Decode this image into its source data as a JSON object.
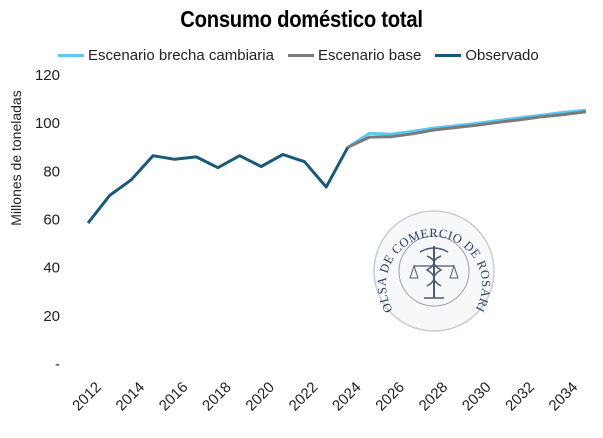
{
  "chart_data": {
    "type": "line",
    "title": "Consumo doméstico total",
    "ylabel": "Millones de toneladas",
    "xlabel": "",
    "ylim": [
      0,
      120
    ],
    "y_ticks": [
      "-",
      "20",
      "40",
      "60",
      "80",
      "100",
      "120"
    ],
    "x_ticks": [
      "2012",
      "2014",
      "2016",
      "2018",
      "2020",
      "2022",
      "2024",
      "2026",
      "2028",
      "2030",
      "2032",
      "2034"
    ],
    "grid": false,
    "legend_position": "top",
    "series": [
      {
        "name": "Escenario brecha cambiaria",
        "color": "#5bc8f0",
        "x": [
          2024,
          2025,
          2026,
          2027,
          2028,
          2029,
          2030,
          2031,
          2032,
          2033,
          2034,
          2035
        ],
        "values": [
          90,
          95.8,
          95.4,
          96.6,
          98.0,
          98.9,
          100.0,
          101.2,
          102.3,
          103.4,
          104.5,
          105.4
        ]
      },
      {
        "name": "Escenario base",
        "color": "#7a7a7a",
        "x": [
          2024,
          2025,
          2026,
          2027,
          2028,
          2029,
          2030,
          2031,
          2032,
          2033,
          2034,
          2035
        ],
        "values": [
          90,
          94.2,
          94.4,
          95.6,
          97.2,
          98.2,
          99.2,
          100.4,
          101.5,
          102.7,
          103.6,
          104.7
        ]
      },
      {
        "name": "Observado",
        "color": "#175a7c",
        "x": [
          2012,
          2013,
          2014,
          2015,
          2016,
          2017,
          2018,
          2019,
          2020,
          2021,
          2022,
          2023,
          2024
        ],
        "values": [
          58.5,
          70,
          76.5,
          86.5,
          85,
          86,
          81.5,
          86.5,
          82,
          87,
          84,
          73.5,
          90
        ]
      }
    ],
    "watermark_text": "BOLSA DE COMERCIO DE ROSARIO"
  }
}
